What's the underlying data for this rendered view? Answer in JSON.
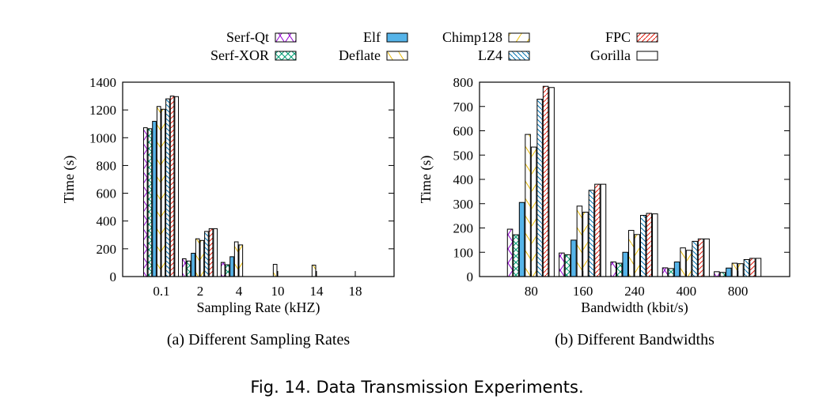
{
  "caption": "Fig. 14.  Data Transmission Experiments.",
  "legend": {
    "items": [
      {
        "name": "Serf-Qt",
        "pattern": "cross",
        "color": "#9400d3"
      },
      {
        "name": "Serf-XOR",
        "pattern": "xhatch",
        "color": "#009e73"
      },
      {
        "name": "Elf",
        "pattern": "solid",
        "color": "#56b4e9"
      },
      {
        "name": "Deflate",
        "pattern": "back",
        "color": "#e6b800"
      },
      {
        "name": "Chimp128",
        "pattern": "fwdsparse",
        "color": "#f0c000"
      },
      {
        "name": "LZ4",
        "pattern": "backdense",
        "color": "#0072b2"
      },
      {
        "name": "FPC",
        "pattern": "fwddense",
        "color": "#e51e10"
      },
      {
        "name": "Gorilla",
        "pattern": "empty",
        "color": "#000000"
      }
    ]
  },
  "chart_data": [
    {
      "type": "bar",
      "title": "(a) Different Sampling Rates",
      "xlabel": "Sampling Rate (kHZ)",
      "ylabel": "Time (s)",
      "ylim": [
        0,
        1400
      ],
      "yticks": [
        0,
        200,
        400,
        600,
        800,
        1000,
        1200,
        1400
      ],
      "grid": false,
      "categories": [
        "0.1",
        "2",
        "4",
        "10",
        "14",
        "18"
      ],
      "series": [
        {
          "name": "Serf-Qt",
          "values": [
            1072,
            128,
            102,
            0,
            0,
            0
          ]
        },
        {
          "name": "Serf-XOR",
          "values": [
            1065,
            112,
            85,
            0,
            0,
            0
          ]
        },
        {
          "name": "Elf",
          "values": [
            1118,
            168,
            143,
            0,
            0,
            0
          ]
        },
        {
          "name": "Deflate",
          "values": [
            1225,
            272,
            250,
            88,
            82,
            0
          ]
        },
        {
          "name": "Chimp128",
          "values": [
            1205,
            260,
            228,
            0,
            0,
            0
          ]
        },
        {
          "name": "LZ4",
          "values": [
            1280,
            325,
            0,
            0,
            0,
            0
          ]
        },
        {
          "name": "FPC",
          "values": [
            1300,
            345,
            0,
            0,
            0,
            0
          ]
        },
        {
          "name": "Gorilla",
          "values": [
            1296,
            345,
            0,
            0,
            0,
            0
          ]
        }
      ]
    },
    {
      "type": "bar",
      "title": "(b) Different Bandwidths",
      "xlabel": "Bandwidth (kbit/s)",
      "ylabel": "Time (s)",
      "ylim": [
        0,
        800
      ],
      "yticks": [
        0,
        100,
        200,
        300,
        400,
        500,
        600,
        700,
        800
      ],
      "grid": false,
      "categories": [
        "80",
        "160",
        "240",
        "400",
        "800"
      ],
      "series": [
        {
          "name": "Serf-Qt",
          "values": [
            195,
            97,
            60,
            36,
            20
          ]
        },
        {
          "name": "Serf-XOR",
          "values": [
            172,
            90,
            55,
            33,
            17
          ]
        },
        {
          "name": "Elf",
          "values": [
            305,
            150,
            100,
            60,
            35
          ]
        },
        {
          "name": "Deflate",
          "values": [
            585,
            290,
            190,
            118,
            55
          ]
        },
        {
          "name": "Chimp128",
          "values": [
            533,
            265,
            173,
            108,
            53
          ]
        },
        {
          "name": "LZ4",
          "values": [
            730,
            355,
            252,
            145,
            70
          ]
        },
        {
          "name": "FPC",
          "values": [
            783,
            380,
            260,
            155,
            75
          ]
        },
        {
          "name": "Gorilla",
          "values": [
            778,
            380,
            258,
            155,
            75
          ]
        }
      ]
    }
  ]
}
